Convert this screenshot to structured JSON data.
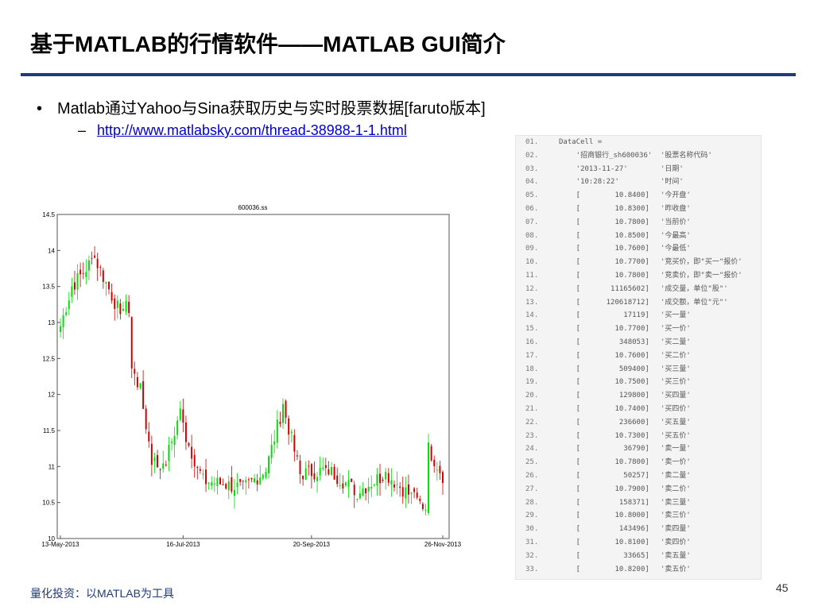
{
  "slide": {
    "title": "基于MATLAB的行情软件——MATLAB GUI简介",
    "bullet_symbol": "•",
    "bullet_text": "Matlab通过Yahoo与Sina获取历史与实时股票数据[faruto版本]",
    "sub_dash": "–",
    "link": "http://www.matlabsky.com/thread-38988-1-1.html",
    "footer": "量化投资：以MATLAB为工具",
    "page_number": "45"
  },
  "code": {
    "lines": [
      {
        "n": "01.",
        "a": "DataCell =",
        "b": ""
      },
      {
        "n": "02.",
        "a": "    '招商银行_sh600036'",
        "b": "'股票名称代码'"
      },
      {
        "n": "03.",
        "a": "    '2013-11-27'",
        "b": "'日期'"
      },
      {
        "n": "04.",
        "a": "    '10:28:22'",
        "b": "'时间'"
      },
      {
        "n": "05.",
        "a": "    [        10.8400]",
        "b": "'今开盘'"
      },
      {
        "n": "06.",
        "a": "    [        10.8300]",
        "b": "'昨收盘'"
      },
      {
        "n": "07.",
        "a": "    [        10.7800]",
        "b": "'当前价'"
      },
      {
        "n": "08.",
        "a": "    [        10.8500]",
        "b": "'今最高'"
      },
      {
        "n": "09.",
        "a": "    [        10.7600]",
        "b": "'今最低'"
      },
      {
        "n": "10.",
        "a": "    [        10.7700]",
        "b": "'竞买价，即\"买一\"报价'"
      },
      {
        "n": "11.",
        "a": "    [        10.7800]",
        "b": "'竞卖价，即\"卖一\"报价'"
      },
      {
        "n": "12.",
        "a": "    [       11165602]",
        "b": "'成交量，单位\"股\"'"
      },
      {
        "n": "13.",
        "a": "    [      120618712]",
        "b": "'成交额，单位\"元\"'"
      },
      {
        "n": "14.",
        "a": "    [          17119]",
        "b": "'买一量'"
      },
      {
        "n": "15.",
        "a": "    [        10.7700]",
        "b": "'买一价'"
      },
      {
        "n": "16.",
        "a": "    [         348053]",
        "b": "'买二量'"
      },
      {
        "n": "17.",
        "a": "    [        10.7600]",
        "b": "'买二价'"
      },
      {
        "n": "18.",
        "a": "    [         509400]",
        "b": "'买三量'"
      },
      {
        "n": "19.",
        "a": "    [        10.7500]",
        "b": "'买三价'"
      },
      {
        "n": "20.",
        "a": "    [         129800]",
        "b": "'买四量'"
      },
      {
        "n": "21.",
        "a": "    [        10.7400]",
        "b": "'买四价'"
      },
      {
        "n": "22.",
        "a": "    [         236600]",
        "b": "'买五量'"
      },
      {
        "n": "23.",
        "a": "    [        10.7300]",
        "b": "'买五价'"
      },
      {
        "n": "24.",
        "a": "    [          36790]",
        "b": "'卖一量'"
      },
      {
        "n": "25.",
        "a": "    [        10.7800]",
        "b": "'卖一价'"
      },
      {
        "n": "26.",
        "a": "    [          50257]",
        "b": "'卖二量'"
      },
      {
        "n": "27.",
        "a": "    [        10.7900]",
        "b": "'卖二价'"
      },
      {
        "n": "28.",
        "a": "    [         158371]",
        "b": "'卖三量'"
      },
      {
        "n": "29.",
        "a": "    [        10.8000]",
        "b": "'卖三价'"
      },
      {
        "n": "30.",
        "a": "    [         143496]",
        "b": "'卖四量'"
      },
      {
        "n": "31.",
        "a": "    [        10.8100]",
        "b": "'卖四价'"
      },
      {
        "n": "32.",
        "a": "    [          33665]",
        "b": "'卖五量'"
      },
      {
        "n": "33.",
        "a": "    [        10.8200]",
        "b": "'卖五价'"
      }
    ]
  },
  "chart_data": {
    "type": "candlestick",
    "title": "600036.ss",
    "xlabel": "",
    "ylabel": "",
    "ylim": [
      10,
      14.5
    ],
    "yticks": [
      10,
      10.5,
      11,
      11.5,
      12,
      12.5,
      13,
      13.5,
      14,
      14.5
    ],
    "ytick_labels": [
      "10",
      "10.5",
      "11",
      "11.5",
      "12",
      "12.5",
      "13",
      "13.5",
      "14",
      "14.5"
    ],
    "xtick_labels": [
      "13-May-2013",
      "16-Jul-2013",
      "20-Sep-2013",
      "26-Nov-2013"
    ],
    "xtick_index": [
      0,
      43,
      88,
      134
    ],
    "n_days": 135,
    "up_color": "#00dd00",
    "down_color": "#cc0000",
    "grid": false,
    "segments": [
      {
        "from": 0,
        "to": 4,
        "start": 12.95,
        "end": 13.5
      },
      {
        "from": 4,
        "to": 12,
        "start": 13.5,
        "end": 13.9
      },
      {
        "from": 12,
        "to": 20,
        "start": 13.9,
        "end": 13.2
      },
      {
        "from": 20,
        "to": 25,
        "start": 13.2,
        "end": 13.2
      },
      {
        "from": 25,
        "to": 28,
        "start": 12.35,
        "end": 12.05
      },
      {
        "from": 28,
        "to": 32,
        "start": 12.05,
        "end": 11.1
      },
      {
        "from": 32,
        "to": 36,
        "start": 11.1,
        "end": 10.95
      },
      {
        "from": 36,
        "to": 42,
        "start": 10.95,
        "end": 11.75
      },
      {
        "from": 42,
        "to": 44,
        "start": 11.75,
        "end": 11.4
      },
      {
        "from": 44,
        "to": 50,
        "start": 11.4,
        "end": 10.8
      },
      {
        "from": 50,
        "to": 58,
        "start": 10.8,
        "end": 10.75
      },
      {
        "from": 58,
        "to": 64,
        "start": 10.75,
        "end": 10.7
      },
      {
        "from": 64,
        "to": 72,
        "start": 10.7,
        "end": 10.95
      },
      {
        "from": 72,
        "to": 78,
        "start": 10.95,
        "end": 11.85
      },
      {
        "from": 78,
        "to": 84,
        "start": 11.85,
        "end": 10.9
      },
      {
        "from": 84,
        "to": 94,
        "start": 10.9,
        "end": 10.95
      },
      {
        "from": 94,
        "to": 104,
        "start": 10.95,
        "end": 10.65
      },
      {
        "from": 104,
        "to": 114,
        "start": 10.65,
        "end": 10.9
      },
      {
        "from": 114,
        "to": 124,
        "start": 10.9,
        "end": 10.55
      },
      {
        "from": 124,
        "to": 129,
        "start": 10.55,
        "end": 10.4
      },
      {
        "from": 129,
        "to": 135,
        "start": 11.25,
        "end": 10.8
      }
    ]
  }
}
